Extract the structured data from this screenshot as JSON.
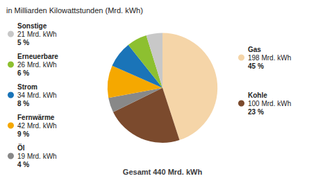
{
  "chart_data": {
    "type": "pie",
    "title": "in Milliarden Kilowattstunden (Mrd. kWh)",
    "annotations": [
      "Gesamt 440 Mrd. kWh"
    ],
    "categories": [
      "Gas",
      "Kohle",
      "Öl",
      "Fernwärme",
      "Strom",
      "Erneuerbare",
      "Sonstige"
    ],
    "values": [
      198,
      100,
      19,
      42,
      34,
      26,
      21
    ],
    "value_labels": [
      "198 Mrd. kWh",
      "100 Mrd. kWh",
      "19 Mrd. kWh",
      "42 Mrd. kWh",
      "34 Mrd. kWh",
      "26 Mrd. kWh",
      "21 Mrd. kWh"
    ],
    "percentages": [
      45,
      23,
      4,
      9,
      8,
      6,
      5
    ],
    "percentage_labels": [
      "45 %",
      "23 %",
      "4 %",
      "9 %",
      "8 %",
      "6 %",
      "5 %"
    ],
    "colors": [
      "#F5D5A8",
      "#7B4A2D",
      "#888888",
      "#F5A800",
      "#1A74B8",
      "#8DC030",
      "#C8C8C8"
    ],
    "legend": "left"
  }
}
